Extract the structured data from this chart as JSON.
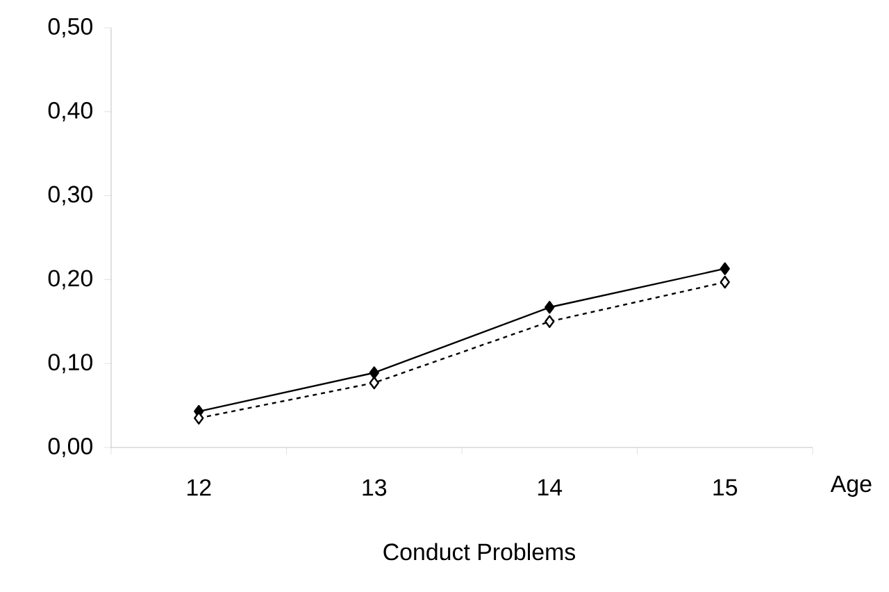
{
  "chart_data": {
    "type": "line",
    "title": "Conduct Problems",
    "xlabel": "Age",
    "categories": [
      "12",
      "13",
      "14",
      "15"
    ],
    "series": [
      {
        "color": "#000000",
        "values": [
          0.043,
          0.089,
          0.167,
          0.213
        ],
        "marker": "diamond",
        "line_style": "solid"
      },
      {
        "color": "#000000",
        "values": [
          0.035,
          0.077,
          0.15,
          0.197
        ],
        "marker": "diamond",
        "line_style": "dotted"
      }
    ],
    "ylim": [
      0,
      0.5
    ],
    "yticks": [
      {
        "value": 0,
        "label": "0,00"
      },
      {
        "value": 0.1,
        "label": "0,10"
      },
      {
        "value": 0.2,
        "label": "0,20"
      },
      {
        "value": 0.3,
        "label": "0,30"
      },
      {
        "value": 0.4,
        "label": "0,40"
      },
      {
        "value": 0.5,
        "label": "0,50"
      }
    ],
    "grid": false
  }
}
